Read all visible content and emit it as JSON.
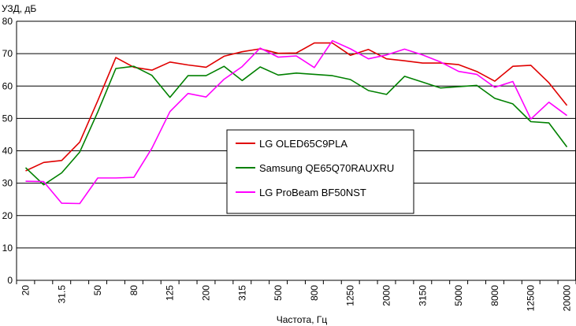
{
  "chart_data": {
    "type": "line",
    "title": "",
    "ylabel": "УЗД, дБ",
    "xlabel": "Частота, Гц",
    "ylim": [
      0,
      80
    ],
    "ytick_step": 10,
    "grid": true,
    "legend_position": "center",
    "x": [
      "20",
      "25",
      "31.5",
      "40",
      "50",
      "63",
      "80",
      "100",
      "125",
      "160",
      "200",
      "250",
      "315",
      "400",
      "500",
      "630",
      "800",
      "1000",
      "1250",
      "1600",
      "2000",
      "2500",
      "3150",
      "4000",
      "5000",
      "6300",
      "8000",
      "10000",
      "12500",
      "16000",
      "20000"
    ],
    "series": [
      {
        "name": "LG OLED65C9PLA",
        "color": "#e00000",
        "values": [
          33.8,
          36.4,
          37.0,
          42.7,
          55.5,
          68.8,
          65.8,
          64.9,
          67.4,
          66.5,
          65.8,
          69.2,
          70.6,
          71.5,
          70.1,
          70.2,
          73.3,
          73.3,
          69.5,
          71.3,
          68.4,
          67.8,
          67.1,
          67.1,
          66.6,
          64.5,
          61.5,
          66.1,
          66.4,
          61.0,
          54.0
        ]
      },
      {
        "name": "Samsung QE65Q70RAUXRU",
        "color": "#008000",
        "values": [
          34.8,
          29.5,
          33.2,
          39.6,
          52.0,
          65.4,
          66.1,
          63.3,
          56.5,
          63.2,
          63.2,
          66.1,
          61.7,
          65.9,
          63.4,
          64.0,
          63.6,
          63.2,
          62.0,
          58.6,
          57.4,
          63.0,
          61.2,
          59.4,
          59.8,
          60.2,
          56.2,
          54.5,
          49.0,
          48.6,
          41.2
        ]
      },
      {
        "name": "LG ProBeam BF50NST",
        "color": "#ff00ff",
        "values": [
          30.6,
          30.5,
          23.8,
          23.7,
          31.6,
          31.6,
          31.8,
          40.8,
          52.1,
          57.7,
          56.6,
          62.1,
          66.0,
          71.7,
          68.9,
          69.3,
          65.7,
          74.0,
          71.5,
          68.4,
          69.6,
          71.4,
          69.6,
          67.4,
          64.5,
          63.6,
          59.6,
          61.4,
          49.8,
          55.0,
          50.9
        ]
      }
    ]
  }
}
